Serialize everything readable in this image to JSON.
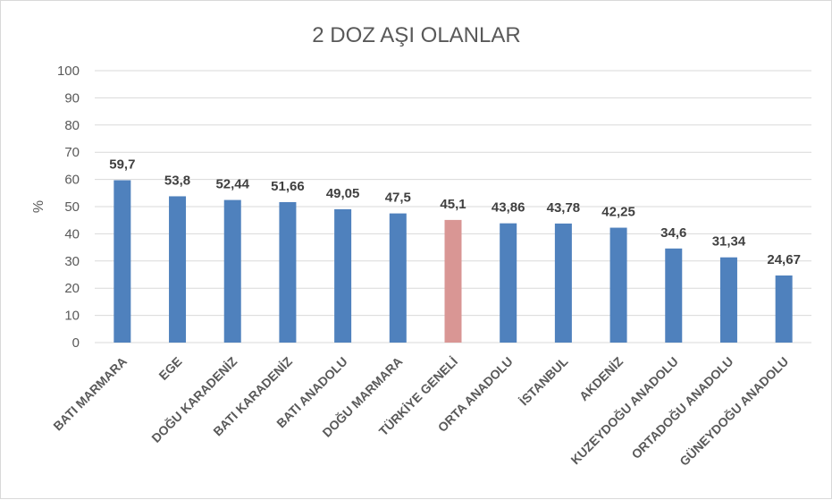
{
  "chart_data": {
    "type": "bar",
    "title": "2 DOZ AŞI OLANLAR",
    "xlabel": "",
    "ylabel": "%",
    "ylim": [
      0,
      100
    ],
    "yticks": [
      0,
      10,
      20,
      30,
      40,
      50,
      60,
      70,
      80,
      90,
      100
    ],
    "grid": true,
    "categories": [
      "BATI MARMARA",
      "EGE",
      "DOĞU KARADENİZ",
      "BATI KARADENİZ",
      "BATI ANADOLU",
      "DOĞU MARMARA",
      "TÜRKİYE GENELİ",
      "ORTA ANADOLU",
      "İSTANBUL",
      "AKDENİZ",
      "KUZEYDOĞU ANADOLU",
      "ORTADOĞU ANADOLU",
      "GÜNEYDOĞU ANADOLU"
    ],
    "values": [
      59.7,
      53.8,
      52.44,
      51.66,
      49.05,
      47.5,
      45.1,
      43.86,
      43.78,
      42.25,
      34.6,
      31.34,
      24.67
    ],
    "data_labels": [
      "59,7",
      "53,8",
      "52,44",
      "51,66",
      "49,05",
      "47,5",
      "45,1",
      "43,86",
      "43,78",
      "42,25",
      "34,6",
      "31,34",
      "24,67"
    ],
    "colors": {
      "default": "#4f81bd",
      "highlight": "#d99694",
      "highlight_category": "TÜRKİYE GENELİ"
    }
  }
}
